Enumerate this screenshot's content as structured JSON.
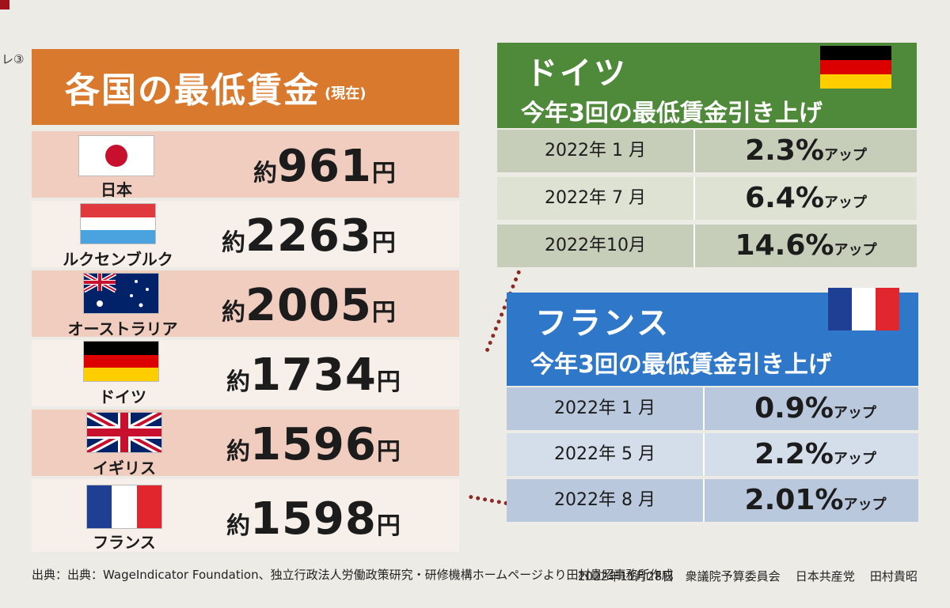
{
  "side_label": "レ③",
  "left": {
    "title": "各国の最低賃金",
    "subtitle": "(現在)",
    "rows": [
      {
        "country": "日本",
        "prefix": "約",
        "amount": "961",
        "suffix": "円",
        "flag": "japan-flag"
      },
      {
        "country": "ルクセンブルク",
        "prefix": "約",
        "amount": "2263",
        "suffix": "円",
        "flag": "luxembourg-flag"
      },
      {
        "country": "オーストラリア",
        "prefix": "約",
        "amount": "2005",
        "suffix": "円",
        "flag": "australia-flag"
      },
      {
        "country": "ドイツ",
        "prefix": "約",
        "amount": "1734",
        "suffix": "円",
        "flag": "germany-flag"
      },
      {
        "country": "イギリス",
        "prefix": "約",
        "amount": "1596",
        "suffix": "円",
        "flag": "uk-flag"
      },
      {
        "country": "フランス",
        "prefix": "約",
        "amount": "1598",
        "suffix": "円",
        "flag": "france-flag"
      }
    ]
  },
  "germany": {
    "title": "ドイツ",
    "subtitle": "今年3回の最低賃金引き上げ",
    "rows": [
      {
        "date": "2022年 1 月",
        "pct": "2.3%",
        "label": "アップ"
      },
      {
        "date": "2022年 7 月",
        "pct": "6.4%",
        "label": "アップ"
      },
      {
        "date": "2022年10月",
        "pct": "14.6%",
        "label": "アップ"
      }
    ]
  },
  "france": {
    "title": "フランス",
    "subtitle": "今年3回の最低賃金引き上げ",
    "rows": [
      {
        "date": "2022年 1 月",
        "pct": "0.9%",
        "label": "アップ"
      },
      {
        "date": "2022年 5 月",
        "pct": "2.2%",
        "label": "アップ"
      },
      {
        "date": "2022年 8 月",
        "pct": "2.01%",
        "label": "アップ"
      }
    ]
  },
  "footer": {
    "source": "出典：出典：WageIndicator Foundation、独立行政法人労働政策研究・研修機構ホームページより田村貴昭事務所作成",
    "date": "2022年11月28日",
    "committee": "衆議院予算委員会",
    "party": "日本共産党",
    "name": "田村貴昭"
  },
  "colors": {
    "orange_header": "#d9792e",
    "germany_green": "#4f8a3a",
    "france_blue": "#2f78c9"
  }
}
